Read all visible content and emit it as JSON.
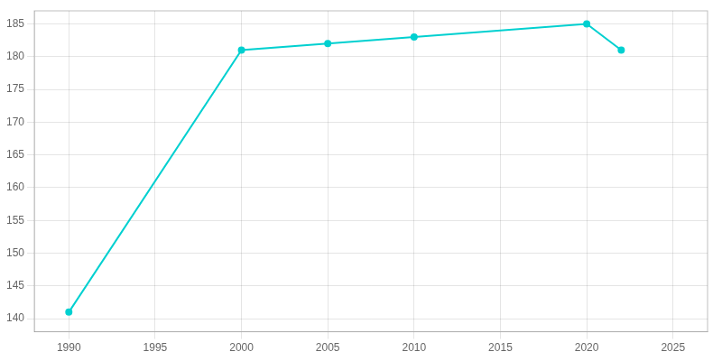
{
  "chart_data": {
    "type": "line",
    "x": [
      1990,
      2000,
      2005,
      2010,
      2020,
      2022
    ],
    "values": [
      141,
      181,
      182,
      183,
      185,
      181
    ],
    "color": "#00d0d0",
    "marker": "circle",
    "xlim": [
      1988,
      2027
    ],
    "ylim": [
      138,
      187
    ],
    "xticks": [
      1990,
      1995,
      2000,
      2005,
      2010,
      2015,
      2020,
      2025
    ],
    "yticks": [
      140,
      145,
      150,
      155,
      160,
      165,
      170,
      175,
      180,
      185
    ],
    "grid": true
  }
}
